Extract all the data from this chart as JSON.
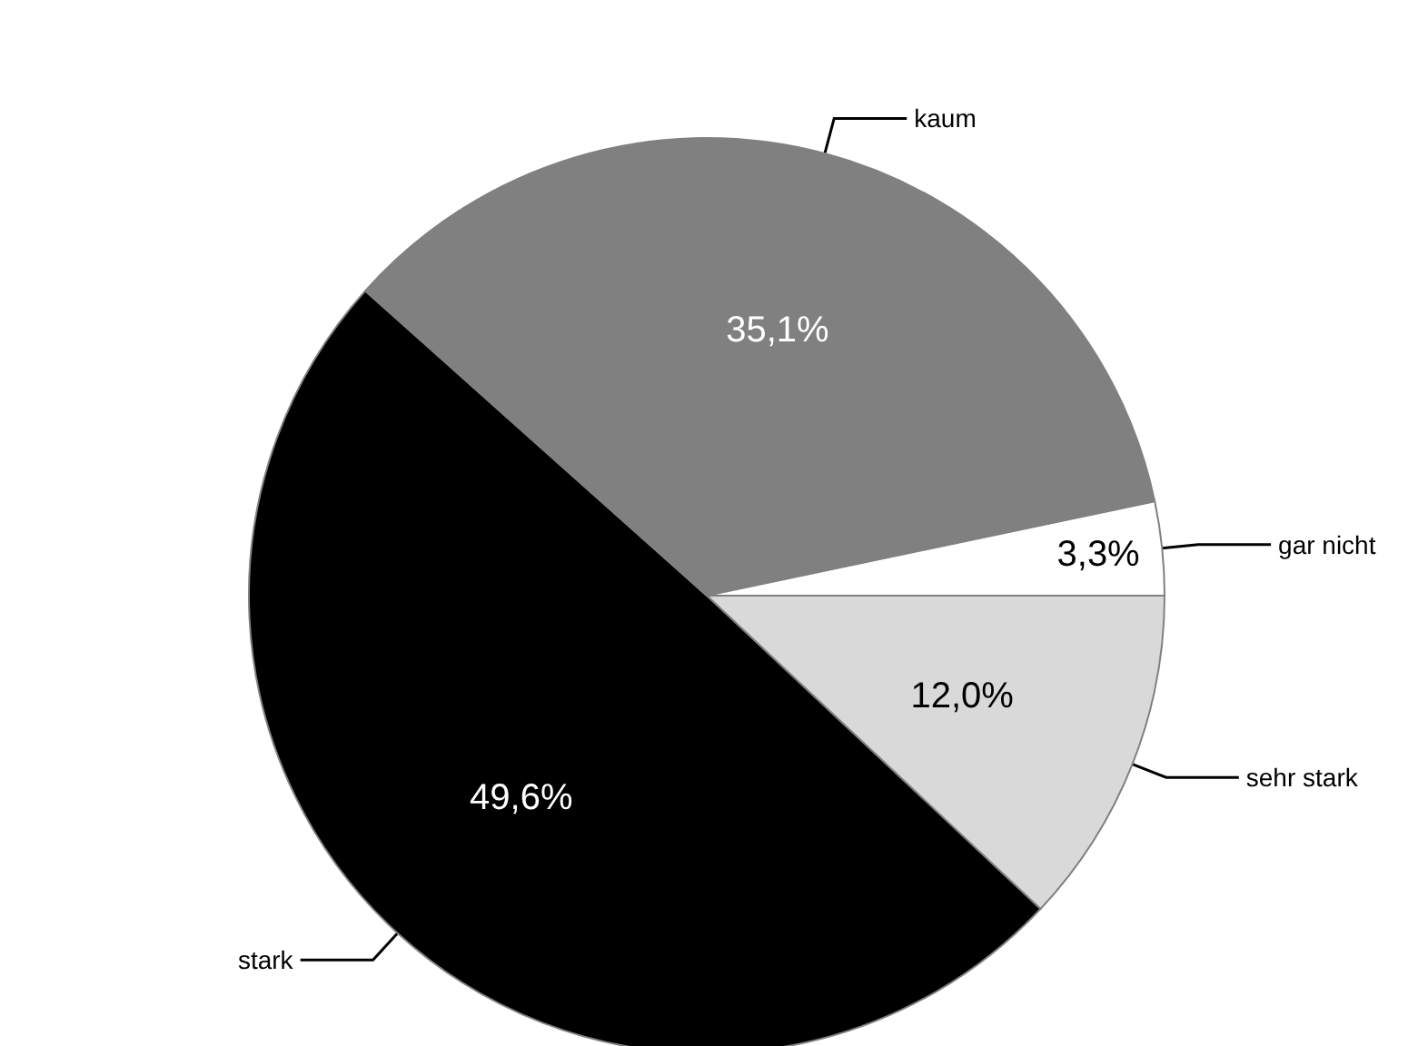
{
  "chart_data": {
    "type": "pie",
    "categories": [
      "sehr stark",
      "stark",
      "kaum",
      "gar nicht"
    ],
    "values": [
      12.0,
      49.6,
      35.1,
      3.3
    ],
    "colors": [
      "#d9d9d9",
      "#000000",
      "#808080",
      "#ffffff"
    ],
    "value_labels": [
      "12,0%",
      "49,6%",
      "35,1%",
      "3,3%"
    ],
    "legend": false
  }
}
